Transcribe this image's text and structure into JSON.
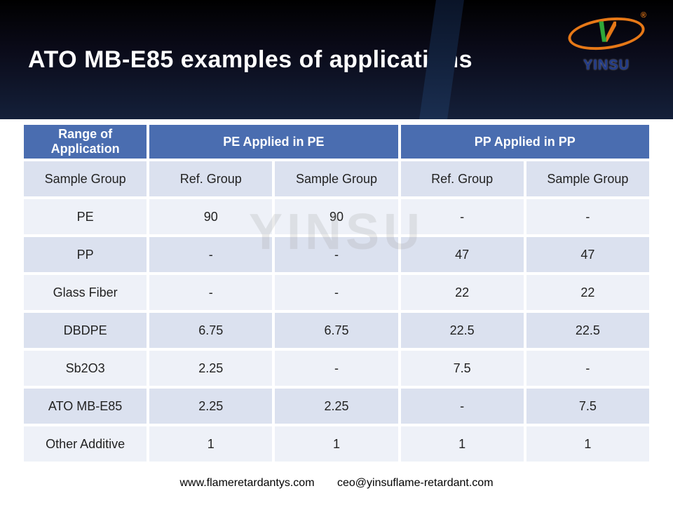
{
  "header": {
    "title": "ATO MB-E85 examples of applications",
    "logo_text": "YINSU",
    "logo_mark": "V",
    "logo_reg": "®"
  },
  "watermark": "YINSU",
  "table": {
    "header_bg": "#4a6db0",
    "header_fg": "#ffffff",
    "row_odd_bg": "#dbe1ef",
    "row_even_bg": "#eef1f8",
    "cell_fg": "#222222",
    "columns": [
      {
        "label": "Range of Application",
        "span": 1
      },
      {
        "label": "PE Applied in PE",
        "span": 2
      },
      {
        "label": "PP Applied in PP",
        "span": 2
      }
    ],
    "subheader": [
      "Sample Group",
      "Ref. Group",
      "Sample Group",
      "Ref. Group",
      "Sample Group"
    ],
    "rows": [
      [
        "PE",
        "90",
        "90",
        "-",
        "-"
      ],
      [
        "PP",
        "-",
        "-",
        "47",
        "47"
      ],
      [
        "Glass Fiber",
        "-",
        "-",
        "22",
        "22"
      ],
      [
        "DBDPE",
        "6.75",
        "6.75",
        "22.5",
        "22.5"
      ],
      [
        "Sb2O3",
        "2.25",
        "-",
        "7.5",
        "-"
      ],
      [
        "ATO MB-E85",
        "2.25",
        "2.25",
        "-",
        "7.5"
      ],
      [
        "Other Additive",
        "1",
        "1",
        "1",
        "1"
      ]
    ]
  },
  "footer": {
    "website": "www.flameretardantys.com",
    "email": "ceo@yinsuflame-retardant.com"
  }
}
